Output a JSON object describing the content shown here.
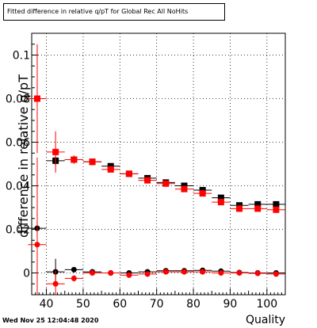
{
  "chart_data": {
    "type": "scatter",
    "title": "Fitted difference in relative q/pT for Global Rec All NoHits",
    "xlabel": "Quality",
    "ylabel": "difference in relative q/pT",
    "timestamp": "Wed Nov 25 12:04:48 2020",
    "xlim": [
      36,
      105
    ],
    "ylim": [
      -0.01,
      0.11
    ],
    "x_ticks": [
      40,
      50,
      60,
      70,
      80,
      90,
      100
    ],
    "x_tick_labels": [
      "40",
      "50",
      "60",
      "70",
      "80",
      "90",
      "100"
    ],
    "y_ticks": [
      0,
      0.02,
      0.04,
      0.06,
      0.08,
      0.1
    ],
    "y_tick_labels": [
      "0",
      "0.02",
      "0.04",
      "0.06",
      "0.08",
      "0.1"
    ],
    "grid": true,
    "series": [
      {
        "marker": "square",
        "color": "#000000",
        "x": [
          37.5,
          42.5,
          47.5,
          52.5,
          57.5,
          62.5,
          67.5,
          72.5,
          77.5,
          82.5,
          87.5,
          92.5,
          97.5,
          102.5
        ],
        "y": [
          0.08,
          0.0515,
          0.052,
          0.051,
          0.049,
          0.0455,
          0.0435,
          0.0415,
          0.04,
          0.038,
          0.0345,
          0.031,
          0.0315,
          0.0315
        ],
        "err": [
          0.0015,
          0.002,
          0.001,
          0.0008,
          0.0008,
          0.0008,
          0.0008,
          0.0008,
          0.0008,
          0.0008,
          0.0008,
          0.0008,
          0.0008,
          0.0008
        ]
      },
      {
        "marker": "square",
        "color": "#ff0000",
        "x": [
          37.5,
          42.5,
          47.5,
          52.5,
          57.5,
          62.5,
          67.5,
          72.5,
          77.5,
          82.5,
          87.5,
          92.5,
          97.5,
          102.5
        ],
        "y": [
          0.08,
          0.0555,
          0.052,
          0.051,
          0.0475,
          0.0455,
          0.0425,
          0.041,
          0.0385,
          0.0365,
          0.0325,
          0.0295,
          0.0295,
          0.029
        ],
        "err": [
          0.025,
          0.0095,
          0.002,
          0.001,
          0.001,
          0.001,
          0.001,
          0.001,
          0.001,
          0.001,
          0.001,
          0.001,
          0.001,
          0.001
        ]
      },
      {
        "marker": "circle",
        "color": "#000000",
        "x": [
          37.5,
          42.5,
          47.5,
          52.5,
          57.5,
          62.5,
          67.5,
          72.5,
          77.5,
          82.5,
          87.5,
          92.5,
          97.5,
          102.5
        ],
        "y": [
          0.0205,
          0.0005,
          0.0015,
          0.0005,
          0.0,
          0.0,
          0.0005,
          0.001,
          0.001,
          0.0012,
          0.0008,
          0.0002,
          0.0,
          0.0
        ],
        "err": [
          0.0015,
          0.006,
          0.001,
          0.0005,
          0.0005,
          0.0005,
          0.0005,
          0.0005,
          0.0005,
          0.0005,
          0.0005,
          0.0005,
          0.0005,
          0.0005
        ]
      },
      {
        "marker": "circle",
        "color": "#ff0000",
        "x": [
          37.5,
          42.5,
          47.5,
          52.5,
          57.5,
          62.5,
          67.5,
          72.5,
          77.5,
          82.5,
          87.5,
          92.5,
          97.5,
          102.5
        ],
        "y": [
          0.013,
          -0.005,
          -0.0025,
          0.0,
          0.0,
          -0.001,
          -0.0005,
          0.0005,
          0.0005,
          0.0005,
          0.0,
          0.0,
          -0.0002,
          -0.0005
        ],
        "err": [
          0.04,
          0.006,
          0.0015,
          0.0008,
          0.0008,
          0.0008,
          0.0008,
          0.0008,
          0.0008,
          0.0008,
          0.0008,
          0.0008,
          0.0008,
          0.0008
        ]
      }
    ]
  }
}
